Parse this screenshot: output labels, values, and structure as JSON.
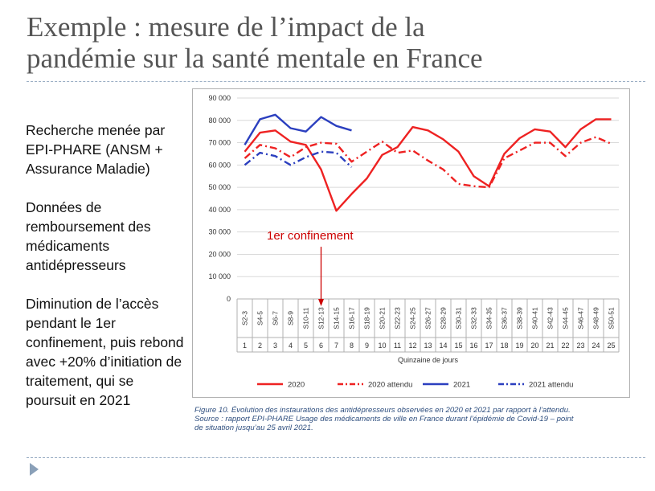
{
  "slide": {
    "title_lines": [
      "Exemple : mesure de l’impact de la",
      "pandémie sur la santé mentale en France"
    ],
    "bullets": [
      "Recherche menée par EPI-PHARE (ANSM + Assurance Maladie)",
      "Données de remboursement des médicaments antidépresseurs",
      "Diminution de l’accès pendant le 1er confinement, puis rebond avec +20% d’initiation de traitement, qui se poursuit en 2021"
    ],
    "caption_lines": [
      "Figure 10. Évolution des instaurations des antidépresseurs observées en 2020 et 2021 par rapport à l’attendu.",
      "Source : rapport EPI-PHARE Usage des médicaments de ville en France durant l’épidémie de Covid-19 – point",
      "de situation jusqu’au 25 avril 2021."
    ]
  },
  "chart_data": {
    "type": "line",
    "title": "",
    "xlabel": "Quinzaine de jours",
    "ylabel": "",
    "ylim": [
      0,
      90000
    ],
    "y_ticks": [
      "0",
      "10 000",
      "20 000",
      "30 000",
      "40 000",
      "50 000",
      "60 000",
      "70 000",
      "80 000",
      "90 000"
    ],
    "categories": [
      "S2-3",
      "S4-5",
      "S6-7",
      "S8-9",
      "S10-11",
      "S12-13",
      "S14-15",
      "S16-17",
      "S18-19",
      "S20-21",
      "S22-23",
      "S24-25",
      "S26-27",
      "S28-29",
      "S30-31",
      "S32-33",
      "S34-35",
      "S36-37",
      "S38-39",
      "S40-41",
      "S42-43",
      "S44-45",
      "S46-47",
      "S48-49",
      "S50-51"
    ],
    "category_numbers": [
      "1",
      "2",
      "3",
      "4",
      "5",
      "6",
      "7",
      "8",
      "9",
      "10",
      "11",
      "12",
      "13",
      "14",
      "15",
      "16",
      "17",
      "18",
      "19",
      "20",
      "21",
      "22",
      "23",
      "24",
      "25"
    ],
    "series": [
      {
        "name": "2020",
        "color": "#ee2222",
        "style": "solid",
        "values": [
          66000,
          74500,
          75500,
          70500,
          69000,
          58000,
          39500,
          47000,
          54000,
          64500,
          68000,
          77000,
          75500,
          71500,
          66000,
          55000,
          50500,
          65000,
          72000,
          76000,
          75000,
          68000,
          76000,
          80500,
          80500
        ]
      },
      {
        "name": "2020 attendu",
        "color": "#ee2222",
        "style": "dashdot",
        "values": [
          63000,
          69000,
          67500,
          63500,
          68000,
          70000,
          69500,
          61500,
          66000,
          70500,
          65500,
          66500,
          62000,
          58000,
          51500,
          50500,
          50000,
          63000,
          66500,
          70000,
          70000,
          64000,
          70000,
          72500,
          69500
        ]
      },
      {
        "name": "2021",
        "color": "#2b3fbf",
        "style": "solid",
        "values": [
          69000,
          80500,
          82500,
          76500,
          75000,
          81500,
          77500,
          75500,
          null,
          null,
          null,
          null,
          null,
          null,
          null,
          null,
          null,
          null,
          null,
          null,
          null,
          null,
          null,
          null,
          null
        ]
      },
      {
        "name": "2021 attendu",
        "color": "#2b3fbf",
        "style": "dashdot",
        "values": [
          60000,
          65500,
          64000,
          60000,
          63500,
          66000,
          65500,
          59000,
          null,
          null,
          null,
          null,
          null,
          null,
          null,
          null,
          null,
          null,
          null,
          null,
          null,
          null,
          null,
          null,
          null
        ]
      }
    ],
    "annotation": {
      "text": "1er confinement",
      "category_index": 5,
      "color": "#cc0000"
    },
    "grid": true,
    "legend_position": "bottom"
  }
}
